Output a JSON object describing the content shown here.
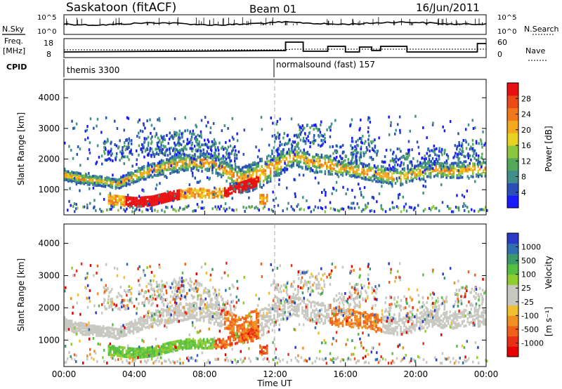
{
  "header": {
    "station": "Saskatoon (fitACF)",
    "beam": "Beam 01",
    "date": "16/Jun/2011"
  },
  "top_panels": {
    "nsky_label": "N.Sky",
    "nsky_ticks": [
      "10^5",
      "10^0"
    ],
    "nsearch_label": "N.Search",
    "nsearch_ticks": [
      "10^5",
      "10^0"
    ],
    "freq_label_line1": "Freq.",
    "freq_label_line2": "[MHz]",
    "freq_ticks": [
      "18",
      "8"
    ],
    "nave_label": "Nave",
    "nave_ticks": [
      "60",
      "0"
    ],
    "cpid_label": "CPID",
    "cpid_segments": [
      {
        "start_hour": 0,
        "text": "themis 3300"
      },
      {
        "start_hour": 12,
        "text": "normalsound (fast) 157"
      }
    ]
  },
  "chart_data": [
    {
      "type": "heatmap",
      "title": "",
      "xlabel": "Time UT",
      "ylabel": "Slant Range [km]",
      "x_ticks": [
        "00:00",
        "04:00",
        "08:00",
        "12:00",
        "16:00",
        "20:00",
        "00:00"
      ],
      "xlim_hours": [
        0,
        24
      ],
      "y_ticks": [
        "1000",
        "2000",
        "3000",
        "4000"
      ],
      "ylim": [
        180,
        4600
      ],
      "colorbar": {
        "label": "Power [dB]",
        "ticks": [
          "4",
          "8",
          "12",
          "16",
          "20",
          "24",
          "28"
        ],
        "range": [
          0,
          32
        ],
        "colors": [
          "#1a1aff",
          "#2a50b8",
          "#3f8f8a",
          "#54a85a",
          "#8dc63f",
          "#e8d420",
          "#f3a81e",
          "#f07818",
          "#ec4a14",
          "#e81010"
        ]
      }
    },
    {
      "type": "heatmap",
      "title": "",
      "xlabel": "Time UT",
      "ylabel": "Slant Range [km]",
      "x_ticks": [
        "00:00",
        "04:00",
        "08:00",
        "12:00",
        "16:00",
        "20:00",
        "00:00"
      ],
      "xlim_hours": [
        0,
        24
      ],
      "y_ticks": [
        "1000",
        "2000",
        "3000",
        "4000"
      ],
      "ylim": [
        180,
        4600
      ],
      "colorbar": {
        "label": "Velocity",
        "unit": "[m s⁻¹]",
        "ticks": [
          "1000",
          "500",
          "100",
          "25",
          "-25",
          "-100",
          "-500",
          "-1000"
        ],
        "colors": [
          "#2a3ac8",
          "#2f6fb0",
          "#3c9a6a",
          "#55c040",
          "#8fcc30",
          "#c8c8c0",
          "#c8c8c0",
          "#f0c030",
          "#f09020",
          "#f06018",
          "#ea3014",
          "#e80000"
        ]
      }
    }
  ]
}
